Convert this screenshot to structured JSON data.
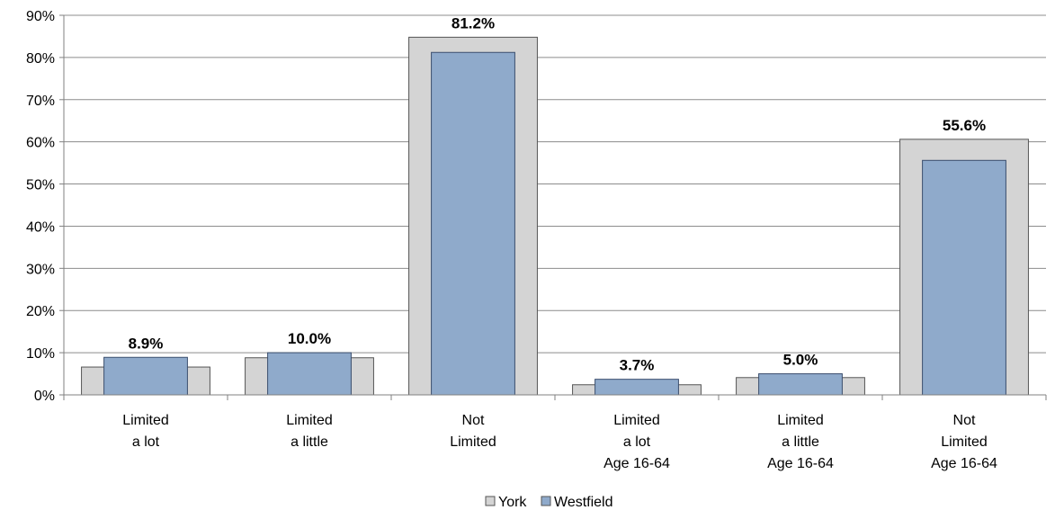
{
  "chart_data": {
    "type": "bar",
    "title": "",
    "xlabel": "",
    "ylabel": "",
    "ylim": [
      0,
      90
    ],
    "yticks": [
      "0%",
      "10%",
      "20%",
      "30%",
      "40%",
      "50%",
      "60%",
      "70%",
      "80%",
      "90%"
    ],
    "categories": [
      [
        "Limited",
        "a lot"
      ],
      [
        "Limited",
        "a little"
      ],
      [
        "Not",
        "Limited"
      ],
      [
        "Limited",
        "a lot",
        "Age 16-64"
      ],
      [
        "Limited",
        "a little",
        "Age 16-64"
      ],
      [
        "Not",
        "Limited",
        "Age 16-64"
      ]
    ],
    "series": [
      {
        "name": "York",
        "color": "#d4d4d4",
        "values": [
          6.6,
          8.8,
          84.8,
          2.4,
          4.1,
          60.6
        ]
      },
      {
        "name": "Westfield",
        "color": "#8faacb",
        "values": [
          8.9,
          10.0,
          81.2,
          3.7,
          5.0,
          55.6
        ],
        "labels": [
          "8.9%",
          "10.0%",
          "81.2%",
          "3.7%",
          "5.0%",
          "55.6%"
        ]
      }
    ],
    "gridlines": true,
    "legend_position": "bottom"
  }
}
